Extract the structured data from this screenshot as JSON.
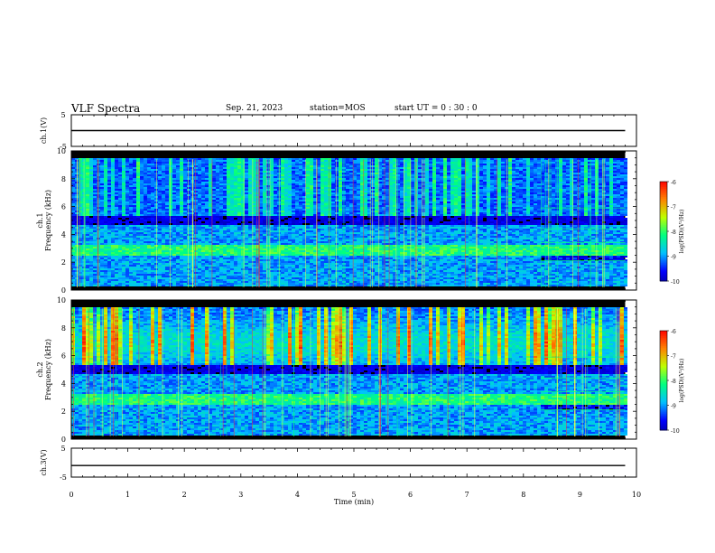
{
  "header": {
    "title": "VLF Spectra",
    "date": "Sep. 21, 2023",
    "station": "station=MOS",
    "start": "start UT =  0 : 30 : 0"
  },
  "colors": {
    "colormap": [
      "#000080",
      "#0000ff",
      "#00c0ff",
      "#00ff80",
      "#c0ff00",
      "#ff8000",
      "#ff0000",
      "#ffffff"
    ],
    "trace": "#000000",
    "background": "#000000"
  },
  "chart_data": [
    {
      "type": "line",
      "ylabel": "ch.1(V)",
      "ylim": [
        -5,
        5
      ],
      "yticks": [
        "5",
        "-5"
      ],
      "x": [
        0,
        9.8
      ],
      "y": [
        0,
        0
      ],
      "xlim": [
        0,
        10
      ]
    },
    {
      "type": "heatmap",
      "ylabel": "ch.1  Frequency (kHz)",
      "ylim": [
        0,
        10
      ],
      "yticks": [
        "0",
        "2",
        "4",
        "6",
        "8",
        "10"
      ],
      "xlim": [
        0,
        10
      ],
      "data_end_min": 9.8,
      "colorbar": {
        "label": "log(PSD)(V²/Hz)",
        "range": [
          -10,
          -6
        ],
        "ticks": [
          "-6",
          "-7",
          "-8",
          "-9",
          "-10"
        ]
      },
      "description_levels": {
        "low_band_kHz": [
          0,
          4.5
        ],
        "bursts_kHz": [
          5.5,
          9.5
        ]
      }
    },
    {
      "type": "heatmap",
      "ylabel": "ch.2  Frequency (kHz)",
      "ylim": [
        0,
        10
      ],
      "yticks": [
        "0",
        "2",
        "4",
        "6",
        "8",
        "10"
      ],
      "xlim": [
        0,
        10
      ],
      "data_end_min": 9.8,
      "colorbar": {
        "label": "log(PSD)(V²/Hz)",
        "range": [
          -10,
          -6
        ],
        "ticks": [
          "-6",
          "-7",
          "-8",
          "-9",
          "-10"
        ]
      }
    },
    {
      "type": "line",
      "ylabel": "ch.3(V)",
      "ylim": [
        -5,
        5
      ],
      "yticks": [
        "5",
        "-5"
      ],
      "x": [
        0,
        9.8
      ],
      "y": [
        -1,
        -1
      ],
      "xlim": [
        0,
        10
      ]
    }
  ],
  "xaxis": {
    "label": "Time (min)",
    "ticks": [
      "0",
      "1",
      "2",
      "3",
      "4",
      "5",
      "6",
      "7",
      "8",
      "9",
      "10"
    ]
  }
}
